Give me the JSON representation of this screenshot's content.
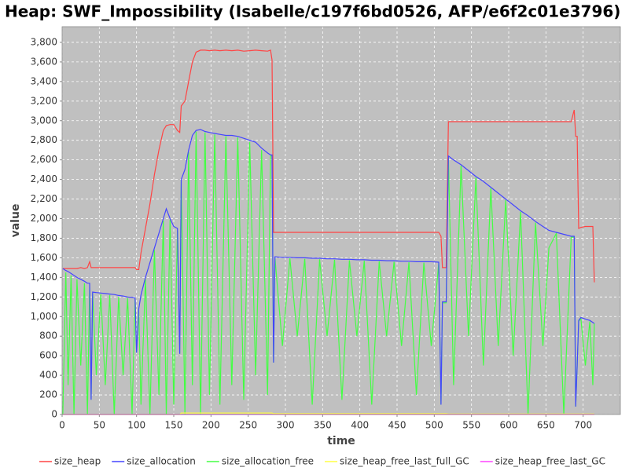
{
  "chart_data": {
    "type": "line",
    "title": "Heap: SWF_Impossibility (Isabelle/c197f6bd0526, AFP/e6f2c01e3796)",
    "x_label": "time",
    "y_label": "value",
    "xlim": [
      0,
      750
    ],
    "ylim": [
      0,
      3960
    ],
    "xticks": [
      0,
      50,
      100,
      150,
      200,
      250,
      300,
      350,
      400,
      450,
      500,
      550,
      600,
      650,
      700
    ],
    "yticks": [
      0,
      200,
      400,
      600,
      800,
      {
        "value": 1000,
        "label": "1,000"
      },
      {
        "value": 1200,
        "label": "1,200"
      },
      {
        "value": 1400,
        "label": "1,400"
      },
      {
        "value": 1600,
        "label": "1,600"
      },
      {
        "value": 1800,
        "label": "1,800"
      },
      {
        "value": 2000,
        "label": "2,000"
      },
      {
        "value": 2200,
        "label": "2,200"
      },
      {
        "value": 2400,
        "label": "2,400"
      },
      {
        "value": 2600,
        "label": "2,600"
      },
      {
        "value": 2800,
        "label": "2,800"
      },
      {
        "value": 3000,
        "label": "3,000"
      },
      {
        "value": 3200,
        "label": "3,200"
      },
      {
        "value": 3400,
        "label": "3,400"
      },
      {
        "value": 3600,
        "label": "3,600"
      },
      {
        "value": 3800,
        "label": "3,800"
      }
    ],
    "grid": true,
    "background": "#c0c0c0",
    "legend": "bottom",
    "x": [
      1,
      5,
      8,
      12,
      16,
      20,
      25,
      30,
      34,
      37,
      39,
      41,
      46,
      52,
      58,
      64,
      70,
      76,
      82,
      88,
      94,
      98,
      100,
      103,
      106,
      112,
      118,
      124,
      130,
      136,
      140,
      145,
      150,
      155,
      158,
      160,
      165,
      170,
      175,
      180,
      186,
      192,
      198,
      205,
      212,
      220,
      228,
      236,
      244,
      252,
      260,
      268,
      276,
      280,
      282,
      284,
      286,
      296,
      306,
      316,
      326,
      336,
      346,
      356,
      366,
      376,
      386,
      396,
      406,
      416,
      426,
      436,
      446,
      456,
      466,
      476,
      486,
      496,
      506,
      509,
      511,
      516,
      519,
      526,
      536,
      546,
      556,
      566,
      576,
      586,
      596,
      606,
      616,
      626,
      636,
      646,
      654,
      664,
      674,
      684,
      688,
      690,
      692,
      694,
      697,
      703,
      709,
      713,
      715
    ],
    "series": [
      {
        "name": "size_heap",
        "color": "#ff4444",
        "values": [
          1490,
          1490,
          1490,
          1490,
          1490,
          1490,
          1500,
          1490,
          1500,
          1560,
          1500,
          1500,
          1500,
          1500,
          1500,
          1500,
          1500,
          1500,
          1500,
          1500,
          1500,
          1500,
          1480,
          1480,
          1650,
          1900,
          2150,
          2450,
          2700,
          2900,
          2950,
          2960,
          2960,
          2900,
          2880,
          3150,
          3200,
          3400,
          3600,
          3700,
          3720,
          3720,
          3715,
          3720,
          3715,
          3720,
          3715,
          3720,
          3710,
          3715,
          3720,
          3715,
          3710,
          3720,
          3620,
          1860,
          1860,
          1860,
          1860,
          1860,
          1860,
          1860,
          1860,
          1860,
          1860,
          1860,
          1860,
          1860,
          1860,
          1860,
          1860,
          1860,
          1860,
          1860,
          1860,
          1860,
          1860,
          1860,
          1860,
          1820,
          1500,
          1500,
          2990,
          2990,
          2990,
          2990,
          2990,
          2990,
          2990,
          2990,
          2990,
          2990,
          2990,
          2990,
          2990,
          2990,
          2990,
          2990,
          2990,
          2990,
          3110,
          2840,
          2840,
          1900,
          1910,
          1920,
          1920,
          1920,
          1350
        ]
      },
      {
        "name": "size_allocation",
        "color": "#4444ff",
        "values": [
          1490,
          1470,
          1460,
          1440,
          1420,
          1400,
          1380,
          1360,
          1340,
          1340,
          150,
          1250,
          1245,
          1240,
          1235,
          1230,
          1225,
          1215,
          1210,
          1200,
          1195,
          1190,
          630,
          1080,
          1220,
          1400,
          1550,
          1700,
          1850,
          2000,
          2100,
          2000,
          1920,
          1900,
          620,
          2400,
          2500,
          2700,
          2850,
          2900,
          2910,
          2890,
          2880,
          2870,
          2860,
          2850,
          2850,
          2840,
          2820,
          2800,
          2780,
          2720,
          2670,
          2650,
          2650,
          530,
          1610,
          1605,
          1605,
          1600,
          1600,
          1595,
          1595,
          1590,
          1590,
          1585,
          1585,
          1580,
          1580,
          1575,
          1575,
          1570,
          1570,
          1565,
          1565,
          1560,
          1560,
          1560,
          1555,
          100,
          1150,
          1150,
          2640,
          2600,
          2550,
          2490,
          2430,
          2380,
          2320,
          2260,
          2200,
          2140,
          2080,
          2030,
          1970,
          1920,
          1880,
          1860,
          1840,
          1820,
          1820,
          80,
          500,
          960,
          990,
          975,
          960,
          940,
          930
        ]
      },
      {
        "name": "size_allocation_free",
        "color": "#44ff44",
        "values": [
          0,
          1450,
          300,
          1420,
          0,
          1380,
          500,
          1340,
          0,
          1300,
          150,
          1240,
          400,
          1230,
          300,
          1220,
          0,
          1200,
          400,
          1190,
          0,
          1180,
          630,
          1070,
          100,
          1380,
          0,
          1680,
          200,
          1980,
          0,
          1990,
          100,
          1880,
          620,
          2400,
          0,
          2680,
          300,
          2890,
          0,
          2880,
          200,
          2860,
          100,
          2840,
          300,
          2830,
          150,
          2780,
          400,
          2700,
          200,
          2640,
          2640,
          530,
          1600,
          700,
          1595,
          800,
          1590,
          100,
          1585,
          800,
          1580,
          150,
          1575,
          800,
          1570,
          100,
          1565,
          800,
          1560,
          700,
          1555,
          200,
          1550,
          700,
          1545,
          100,
          1140,
          1140,
          2630,
          300,
          2540,
          800,
          2420,
          500,
          2310,
          700,
          2190,
          600,
          2070,
          0,
          1960,
          700,
          1700,
          1850,
          0,
          1810,
          1810,
          80,
          500,
          950,
          980,
          500,
          950,
          300,
          930
        ]
      },
      {
        "name": "size_heap_free_last_full_GC",
        "color": "#ffff44",
        "values": [
          0,
          0,
          0,
          0,
          0,
          0,
          0,
          0,
          0,
          0,
          0,
          0,
          0,
          0,
          0,
          0,
          0,
          0,
          0,
          0,
          0,
          0,
          0,
          0,
          0,
          0,
          0,
          0,
          0,
          0,
          0,
          0,
          0,
          0,
          0,
          15,
          15,
          15,
          15,
          15,
          15,
          15,
          15,
          15,
          15,
          15,
          15,
          15,
          15,
          15,
          15,
          15,
          15,
          15,
          15,
          8,
          8,
          8,
          8,
          8,
          8,
          8,
          8,
          8,
          8,
          8,
          8,
          8,
          8,
          8,
          8,
          8,
          8,
          8,
          8,
          8,
          8,
          8,
          8,
          8,
          8,
          8,
          5,
          5,
          5,
          5,
          5,
          5,
          5,
          5,
          5,
          5,
          5,
          5,
          5,
          5,
          5,
          5,
          5,
          5,
          5,
          5,
          5,
          5,
          5,
          5,
          5,
          5,
          5
        ]
      },
      {
        "name": "size_heap_free_last_GC",
        "color": "#ff44ff",
        "values": [
          0,
          0,
          0,
          0,
          0,
          0,
          0,
          0,
          0,
          0,
          0,
          0,
          0,
          0,
          0,
          0,
          0,
          0,
          0,
          0,
          0,
          0,
          0,
          0,
          0,
          0,
          0,
          0,
          0,
          0,
          0,
          0,
          0,
          0,
          0,
          0,
          0,
          0,
          0,
          0,
          0,
          0,
          0,
          0,
          0,
          0,
          0,
          0,
          0,
          0,
          0,
          0,
          0,
          0,
          0,
          0,
          0,
          0,
          0,
          0,
          0,
          0,
          0,
          0,
          0,
          0,
          0,
          0,
          0,
          0,
          0,
          0,
          0,
          0,
          0,
          0,
          0,
          0,
          0,
          0,
          0,
          0,
          0,
          0,
          0,
          0,
          0,
          0,
          0,
          0,
          0,
          0,
          0,
          0,
          0,
          0,
          0,
          0,
          0,
          0,
          0,
          0,
          0,
          0,
          0,
          0,
          0,
          0,
          0
        ]
      }
    ]
  }
}
